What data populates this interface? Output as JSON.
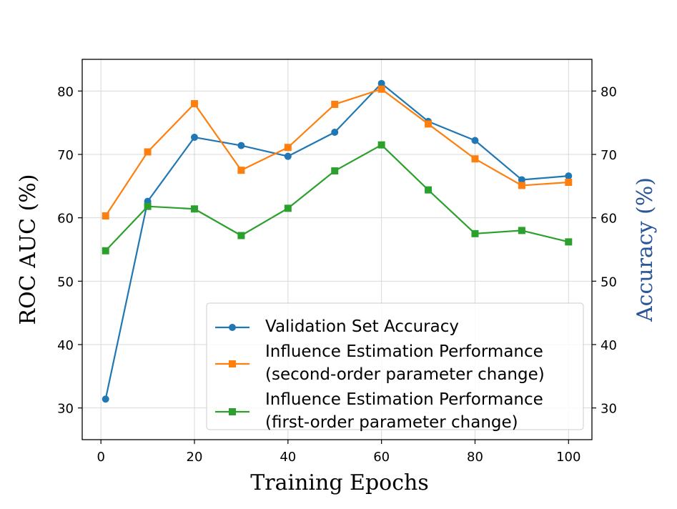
{
  "chart_data": {
    "type": "line",
    "title": "",
    "xlabel": "Training Epochs",
    "ylabel_left": "ROC AUC (%)",
    "ylabel_right": "Accuracy (%)",
    "xlim": [
      -4,
      105
    ],
    "ylim": [
      25,
      85
    ],
    "xticks": [
      "0",
      "20",
      "40",
      "60",
      "80",
      "100"
    ],
    "yticks_left": [
      "30",
      "40",
      "50",
      "60",
      "70",
      "80"
    ],
    "yticks_right": [
      "30",
      "40",
      "50",
      "60",
      "70",
      "80"
    ],
    "grid": true,
    "legend_position": "lower-right",
    "x": [
      1,
      10,
      20,
      30,
      40,
      50,
      60,
      70,
      80,
      90,
      100
    ],
    "series": [
      {
        "name": "Validation Set Accuracy",
        "legend_lines": [
          "Validation Set Accuracy"
        ],
        "color": "#1f77b4",
        "marker": "circle",
        "values": [
          31.4,
          62.6,
          72.7,
          71.4,
          69.7,
          73.5,
          81.2,
          75.2,
          72.2,
          66.0,
          66.6
        ]
      },
      {
        "name": "Influence Estimation Performance (second-order parameter change)",
        "legend_lines": [
          "Influence Estimation Performance",
          "(second-order parameter change)"
        ],
        "color": "#ff7f0e",
        "marker": "square",
        "values": [
          60.3,
          70.4,
          78.0,
          67.5,
          71.1,
          77.9,
          80.3,
          74.8,
          69.3,
          65.1,
          65.6
        ]
      },
      {
        "name": "Influence Estimation Performance (first-order parameter change)",
        "legend_lines": [
          "Influence Estimation Performance",
          "(first-order parameter change)"
        ],
        "color": "#2ca02c",
        "marker": "square",
        "values": [
          54.8,
          61.8,
          61.4,
          57.2,
          61.5,
          67.4,
          71.5,
          64.4,
          57.5,
          58.0,
          56.2
        ]
      }
    ],
    "colors": {
      "right_axis_label": "#2a5597"
    }
  }
}
